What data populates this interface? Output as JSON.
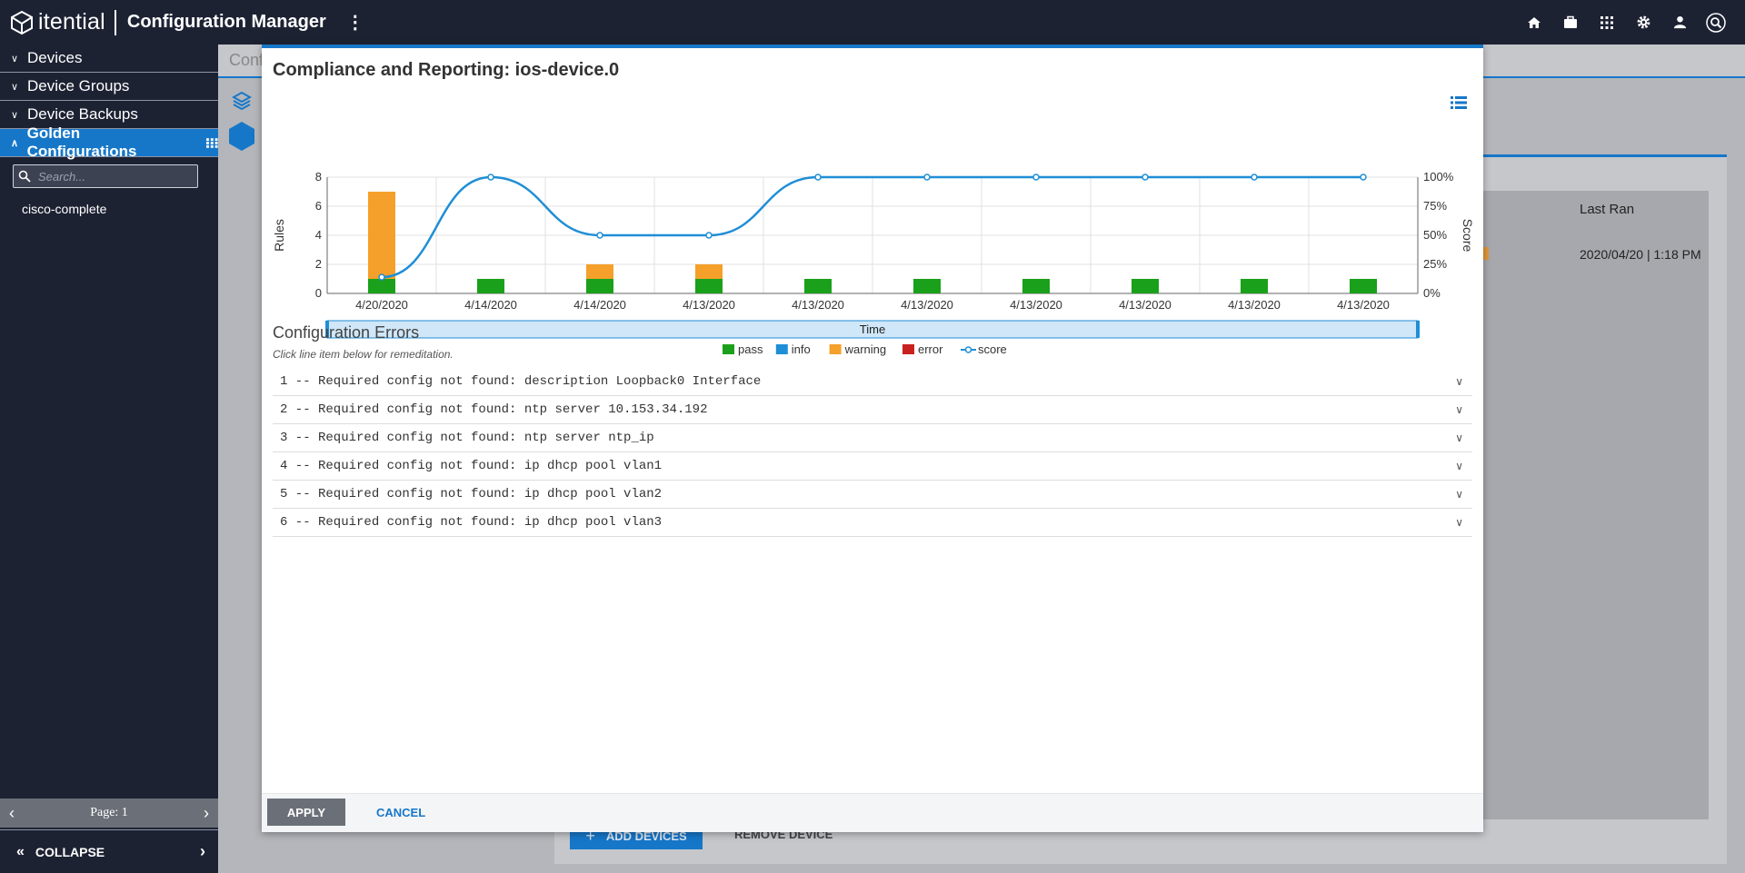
{
  "app": {
    "logo_text": "itential",
    "title": "Configuration Manager"
  },
  "topbar_icons": [
    "home-icon",
    "briefcase-icon",
    "apps-grid-icon",
    "gear-icon",
    "user-icon",
    "search-icon"
  ],
  "sidebar": {
    "items": [
      {
        "label": "Devices",
        "expanded": false
      },
      {
        "label": "Device Groups",
        "expanded": false
      },
      {
        "label": "Device Backups",
        "expanded": false
      },
      {
        "label": "Golden Configurations",
        "expanded": true,
        "active": true
      }
    ],
    "search_placeholder": "Search...",
    "tree_items": [
      "cisco-complete"
    ],
    "pager_label": "Page: 1",
    "collapse_label": "COLLAPSE"
  },
  "background": {
    "breadcrumb": "Conf",
    "last_ran_header": "Last Ran",
    "last_ran_value": "2020/04/20 | 1:18 PM",
    "add_devices_label": "ADD DEVICES",
    "remove_device_label": "REMOVE DEVICE"
  },
  "modal": {
    "title": "Compliance and Reporting: ios-device.0",
    "errors_title": "Configuration Errors",
    "errors_hint": "Click line item below for remeditation.",
    "errors": [
      "1 -- Required config not found: description Loopback0 Interface",
      "2 -- Required config not found: ntp server 10.153.34.192",
      "3 -- Required config not found: ntp server ntp_ip",
      "4 -- Required config not found: ip dhcp pool vlan1",
      "5 -- Required config not found: ip dhcp pool vlan2",
      "6 -- Required config not found: ip dhcp pool vlan3"
    ],
    "apply_label": "APPLY",
    "cancel_label": "CANCEL"
  },
  "chart_data": {
    "type": "bar",
    "categories": [
      "4/20/2020",
      "4/14/2020",
      "4/14/2020",
      "4/13/2020",
      "4/13/2020",
      "4/13/2020",
      "4/13/2020",
      "4/13/2020",
      "4/13/2020",
      "4/13/2020"
    ],
    "series": [
      {
        "name": "pass",
        "type": "bar",
        "stack": "rules",
        "color": "#1aa01a",
        "values": [
          1,
          1,
          1,
          1,
          1,
          1,
          1,
          1,
          1,
          1
        ]
      },
      {
        "name": "info",
        "type": "bar",
        "stack": "rules",
        "color": "#1f8ed6",
        "values": [
          0,
          0,
          0,
          0,
          0,
          0,
          0,
          0,
          0,
          0
        ]
      },
      {
        "name": "warning",
        "type": "bar",
        "stack": "rules",
        "color": "#f5a02a",
        "values": [
          6,
          0,
          1,
          1,
          0,
          0,
          0,
          0,
          0,
          0
        ]
      },
      {
        "name": "error",
        "type": "bar",
        "stack": "rules",
        "color": "#c9211e",
        "values": [
          0,
          0,
          0,
          0,
          0,
          0,
          0,
          0,
          0,
          0
        ]
      },
      {
        "name": "score",
        "type": "line",
        "axis": "right",
        "color": "#1f8ed6",
        "values": [
          14,
          100,
          50,
          50,
          100,
          100,
          100,
          100,
          100,
          100
        ]
      }
    ],
    "xlabel": "Time",
    "ylabel": "Rules",
    "ylabel_right": "Score",
    "ylim": [
      0,
      8
    ],
    "yticks": [
      0,
      2,
      4,
      6,
      8
    ],
    "ylim_right": [
      0,
      100
    ],
    "yticks_right": [
      "0%",
      "25%",
      "50%",
      "75%",
      "100%"
    ],
    "grid": true,
    "legend_position": "bottom"
  }
}
